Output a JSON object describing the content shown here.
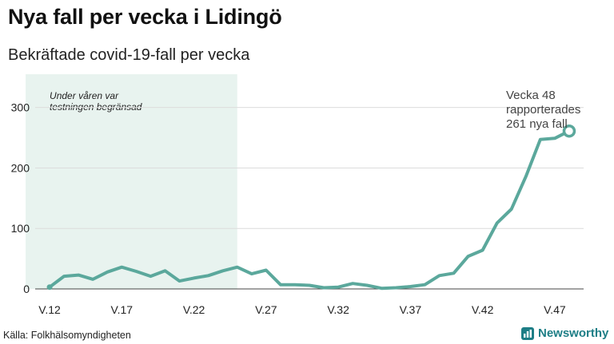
{
  "header": {
    "title": "Nya fall per vecka i Lidingö",
    "subtitle": "Bekräftade covid-19-fall per vecka"
  },
  "footer": {
    "source": "Källa: Folkhälsomyndigheten",
    "brand": "Newsworthy",
    "brand_icon": "bar-chart-icon"
  },
  "colors": {
    "line": "#5ba89c",
    "shade": "#e8f3ef",
    "grid": "#dcdcdc",
    "brand": "#1e7e86"
  },
  "chart_data": {
    "type": "line",
    "title": "Nya fall per vecka i Lidingö",
    "subtitle": "Bekräftade covid-19-fall per vecka",
    "x": [
      12,
      13,
      14,
      15,
      16,
      17,
      18,
      19,
      20,
      21,
      22,
      23,
      24,
      25,
      26,
      27,
      28,
      29,
      30,
      31,
      32,
      33,
      34,
      35,
      36,
      37,
      38,
      39,
      40,
      41,
      42,
      43,
      44,
      45,
      46,
      47,
      48
    ],
    "series": [
      {
        "values": [
          3,
          21,
          23,
          16,
          28,
          36,
          29,
          21,
          30,
          13,
          18,
          22,
          30,
          36,
          25,
          31,
          7,
          7,
          6,
          2,
          3,
          9,
          6,
          1,
          2,
          4,
          7,
          22,
          26,
          54,
          64,
          109,
          132,
          186,
          247,
          249,
          261
        ]
      }
    ],
    "xticks": [
      12,
      17,
      22,
      27,
      32,
      37,
      42,
      47
    ],
    "xtick_labels": [
      "V.12",
      "V.17",
      "V.22",
      "V.27",
      "V.32",
      "V.37",
      "V.42",
      "V.47"
    ],
    "yticks": [
      0,
      100,
      200,
      300
    ],
    "ylim": [
      0,
      355
    ],
    "xlim": [
      11,
      49
    ],
    "grid": true,
    "shaded_region": {
      "x_start": 12,
      "x_end": 25,
      "label": [
        "Under våren var",
        "testningen begränsad"
      ]
    },
    "annotation": {
      "x": 48,
      "y": 261,
      "lines": [
        "Vecka 48",
        "rapporterades",
        "261 nya fall"
      ]
    }
  }
}
